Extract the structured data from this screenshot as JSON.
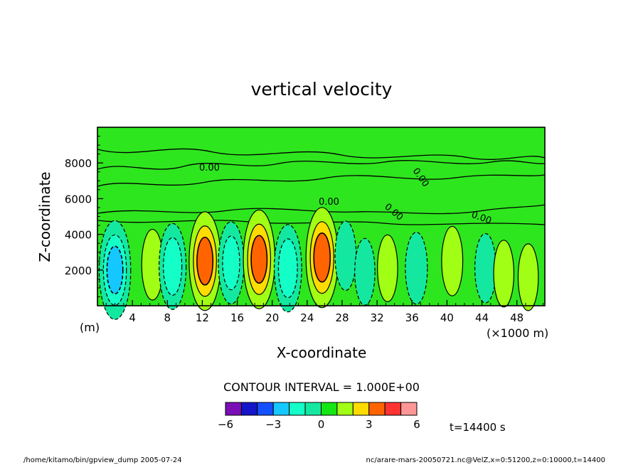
{
  "chart_data": {
    "type": "contour",
    "title": "vertical velocity",
    "xlabel": "X-coordinate",
    "ylabel": "Z-coordinate",
    "x_unit": "(×1000 m)",
    "y_unit": "(m)",
    "xlim": [
      0,
      51.2
    ],
    "ylim": [
      0,
      10000
    ],
    "x_ticks": [
      4,
      8,
      12,
      16,
      20,
      24,
      28,
      32,
      36,
      40,
      44,
      48
    ],
    "y_ticks": [
      2000,
      4000,
      6000,
      8000
    ],
    "contour_interval_text": "CONTOUR INTERVAL = 1.000E+00",
    "contour_labels": [
      "0.00"
    ],
    "colorbar": {
      "ticks": [
        "−6",
        "−3",
        "0",
        "3",
        "6"
      ],
      "colors": [
        "#7a0fb6",
        "#1414c8",
        "#1450ff",
        "#14c8ff",
        "#14ffc8",
        "#14e8a0",
        "#14e614",
        "#a0ff14",
        "#ffdc00",
        "#ff6400",
        "#ff3232",
        "#ff9696"
      ]
    },
    "time_text": "t=14400 s",
    "cells": [
      {
        "x": 2.0,
        "z": 2000,
        "w": -3.5
      },
      {
        "x": 6.3,
        "z": 2300,
        "w": 1.3
      },
      {
        "x": 8.6,
        "z": 2200,
        "w": -2.5
      },
      {
        "x": 12.3,
        "z": 2500,
        "w": 3.5
      },
      {
        "x": 15.3,
        "z": 2400,
        "w": -2.2
      },
      {
        "x": 18.5,
        "z": 2600,
        "w": 3.5
      },
      {
        "x": 21.8,
        "z": 2100,
        "w": -2.6
      },
      {
        "x": 25.7,
        "z": 2700,
        "w": 3.6
      },
      {
        "x": 28.4,
        "z": 2800,
        "w": -1.2
      },
      {
        "x": 30.6,
        "z": 1900,
        "w": -1.0
      },
      {
        "x": 33.2,
        "z": 2100,
        "w": 1.0
      },
      {
        "x": 36.5,
        "z": 2100,
        "w": -1.4
      },
      {
        "x": 40.6,
        "z": 2500,
        "w": 1.2
      },
      {
        "x": 44.4,
        "z": 2100,
        "w": -1.2
      },
      {
        "x": 46.5,
        "z": 1800,
        "w": 1.0
      },
      {
        "x": 49.3,
        "z": 1600,
        "w": 1.0
      }
    ]
  },
  "footer": {
    "left": "/home/kitamo/bin/gpview_dump   2005-07-24",
    "right": "nc/arare-mars-20050721.nc@VelZ,x=0:51200,z=0:10000,t=14400"
  }
}
